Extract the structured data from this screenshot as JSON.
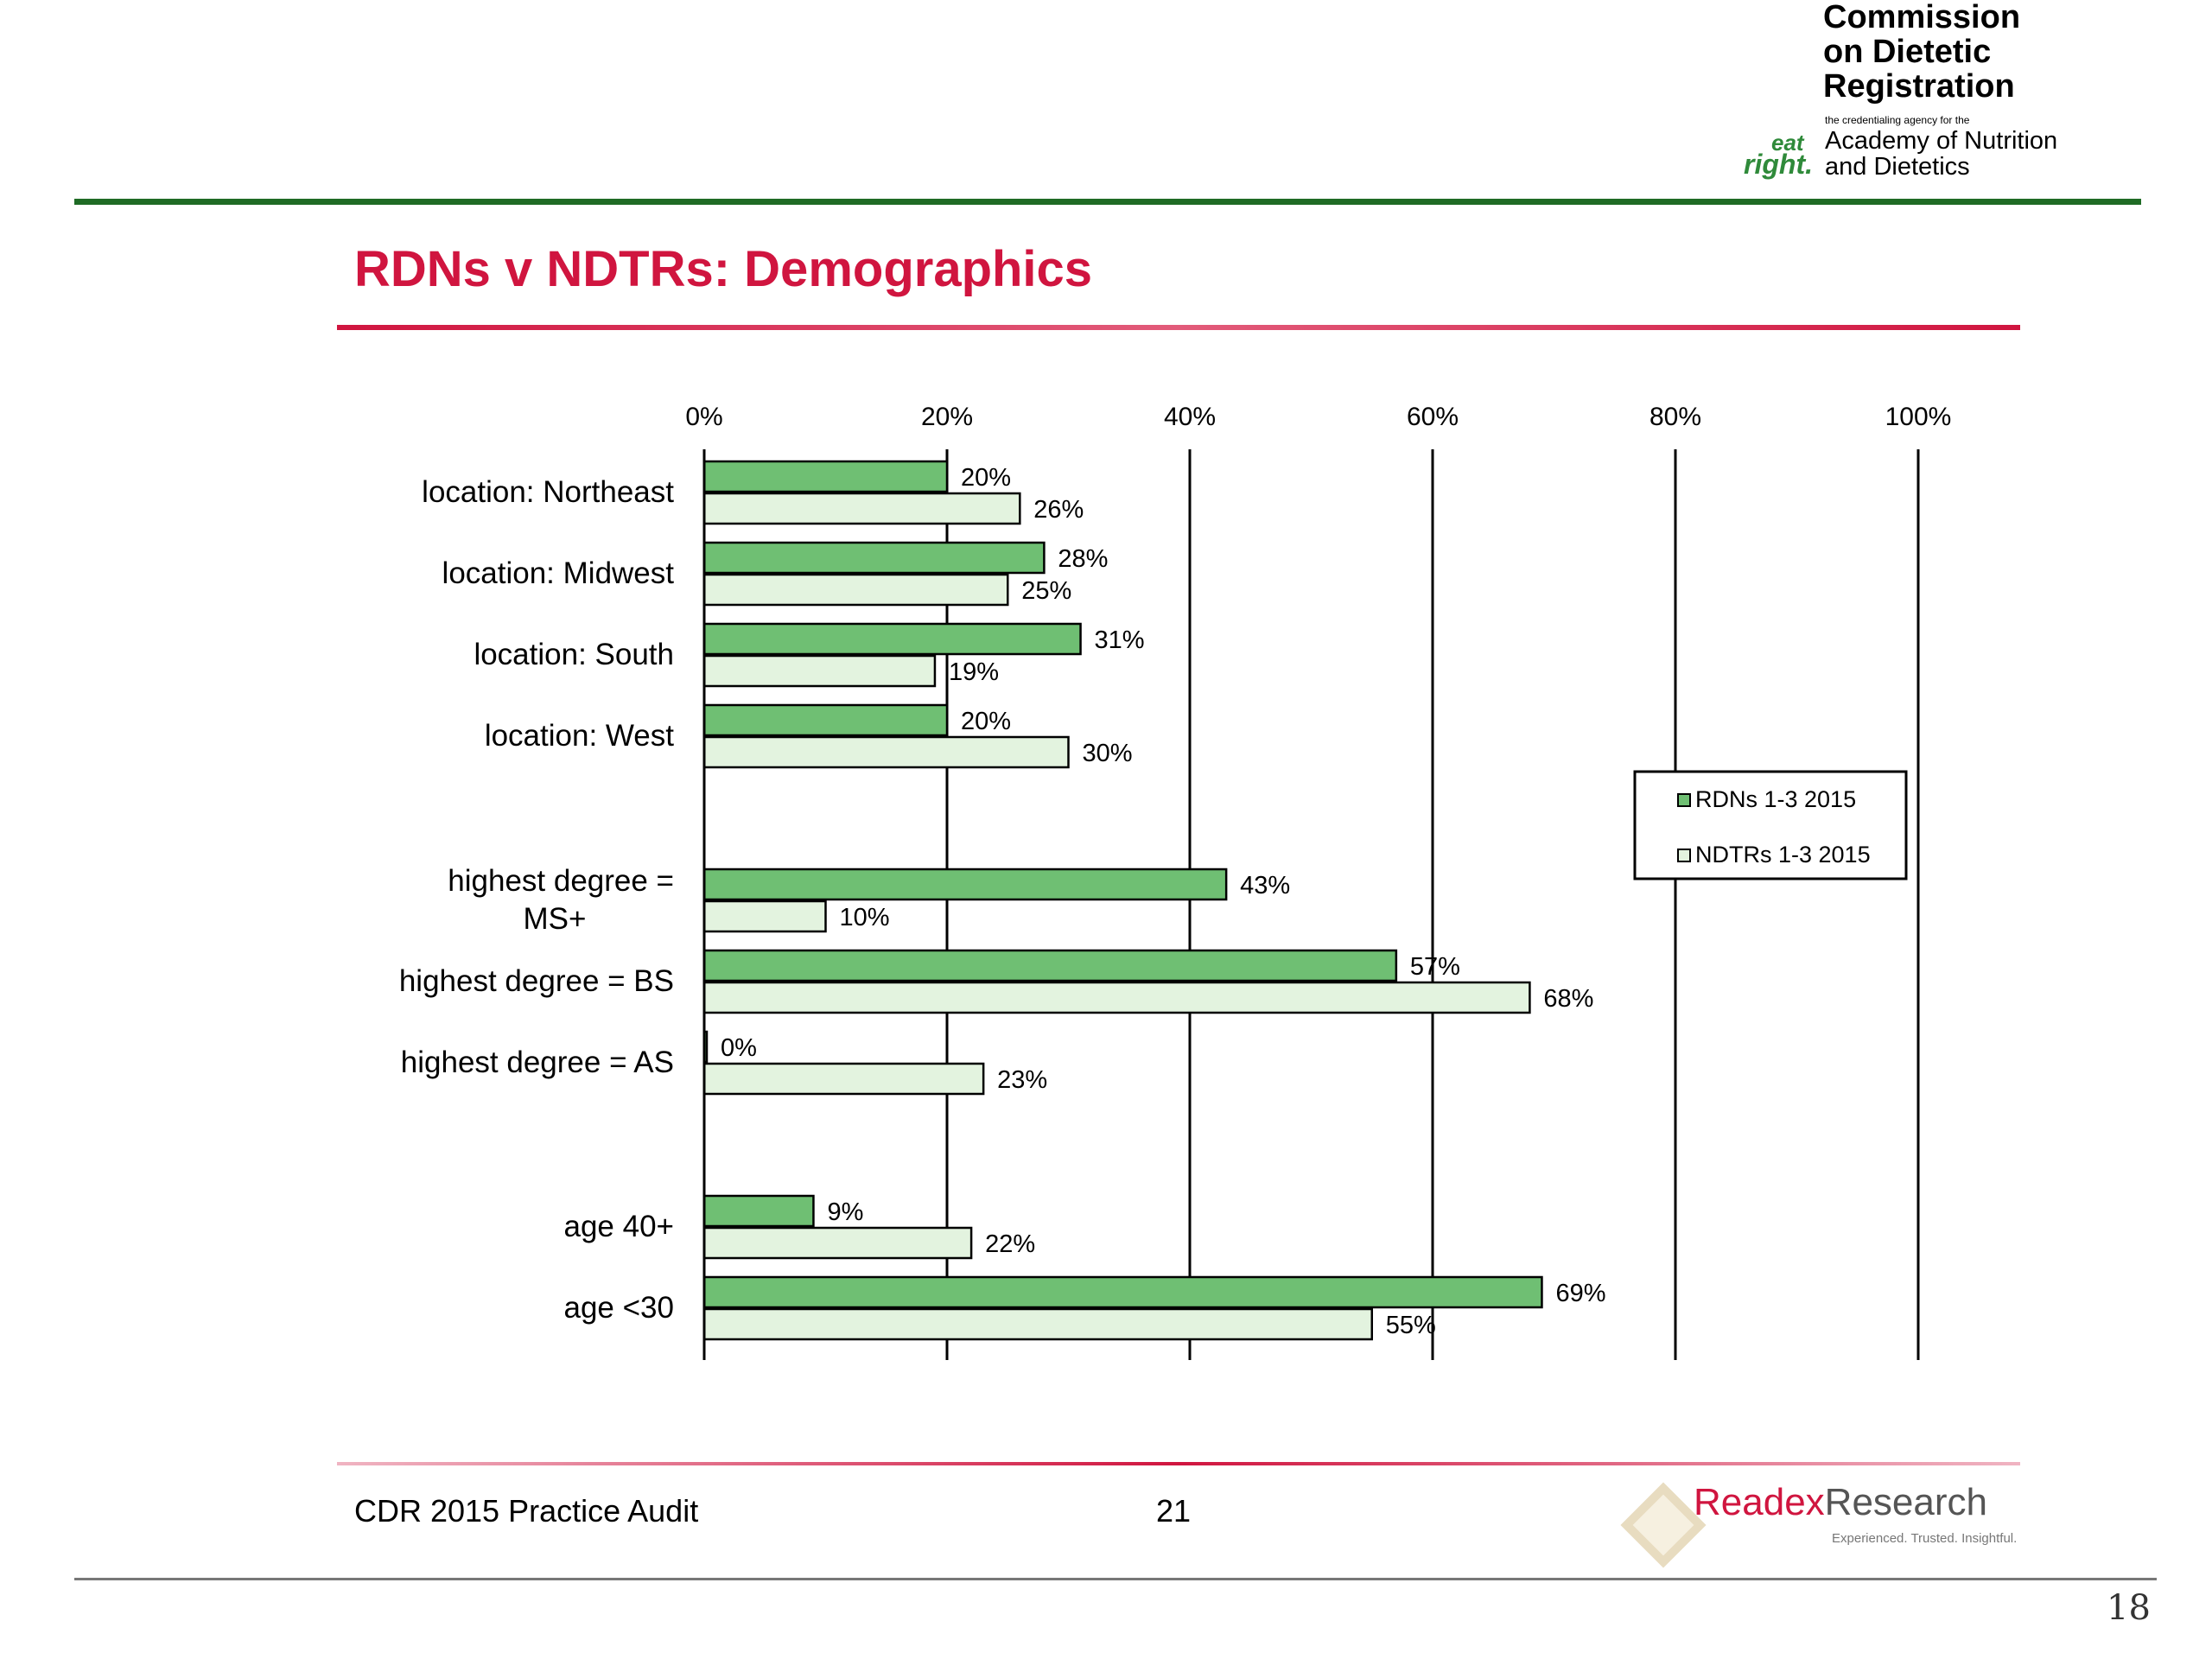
{
  "logo": {
    "line1": "Commission",
    "line2": "on Dietetic",
    "line3": "Registration",
    "tagline": "the credentialing agency for the",
    "eat": "eat",
    "right": "right.",
    "academy_line1": "Academy of Nutrition",
    "academy_line2": "and Dietetics"
  },
  "slide": {
    "title": "RDNs v NDTRs: Demographics",
    "footer_left": "CDR 2015 Practice Audit",
    "footer_page": "21",
    "page_number": "18"
  },
  "readex": {
    "name_part1": "Readex",
    "name_part2": "Research",
    "tagline": "Experienced. Trusted. Insightful."
  },
  "colors": {
    "title_red": "#d0153f",
    "rule_green": "#1f6b25",
    "rdn_fill": "#6fbf73",
    "ndtr_fill": "#e3f3df"
  },
  "chart_data": {
    "type": "bar",
    "orientation": "horizontal",
    "x_ticks": [
      "0%",
      "20%",
      "40%",
      "60%",
      "80%",
      "100%"
    ],
    "xlim": [
      0,
      100
    ],
    "grid": true,
    "legend_position": "right",
    "categories": [
      "location: Northeast",
      "location: Midwest",
      "location: South",
      "location: West",
      "highest degree = MS+",
      "highest degree = BS",
      "highest degree = AS",
      "age 40+",
      "age <30"
    ],
    "category_lines": [
      [
        "location: Northeast"
      ],
      [
        "location: Midwest"
      ],
      [
        "location: South"
      ],
      [
        "location: West"
      ],
      [
        "highest degree =",
        "MS+"
      ],
      [
        "highest degree = BS"
      ],
      [
        "highest degree = AS"
      ],
      [
        "age 40+"
      ],
      [
        "age <30"
      ]
    ],
    "groups": [
      0,
      0,
      0,
      0,
      1,
      1,
      1,
      2,
      2
    ],
    "series": [
      {
        "name": "RDNs 1-3 2015",
        "values": [
          20,
          28,
          31,
          20,
          43,
          57,
          0,
          9,
          69
        ],
        "labels": [
          "20%",
          "28%",
          "31%",
          "20%",
          "43%",
          "57%",
          "0%",
          "9%",
          "69%"
        ]
      },
      {
        "name": "NDTRs 1-3 2015",
        "values": [
          26,
          25,
          19,
          30,
          10,
          68,
          23,
          22,
          55
        ],
        "labels": [
          "26%",
          "25%",
          "19%",
          "30%",
          "10%",
          "68%",
          "23%",
          "22%",
          "55%"
        ]
      }
    ]
  }
}
